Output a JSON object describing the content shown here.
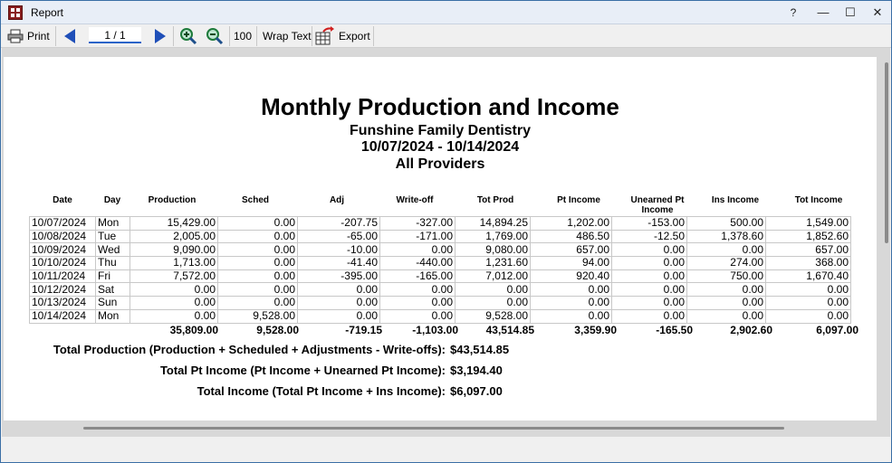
{
  "window": {
    "title": "Report",
    "help": "?",
    "minimize": "—",
    "maximize": "☐",
    "close": "✕"
  },
  "toolbar": {
    "print_label": "Print",
    "page_indicator": "1 / 1",
    "zoom_value": "100",
    "wrap_text_label": "Wrap Text",
    "export_label": "Export"
  },
  "report": {
    "title": "Monthly Production and Income",
    "practice": "Funshine Family Dentistry",
    "date_range": "10/07/2024 - 10/14/2024",
    "providers": "All Providers",
    "columns": [
      "Date",
      "Day",
      "Production",
      "Sched",
      "Adj",
      "Write-off",
      "Tot Prod",
      "Pt Income",
      "Unearned Pt Income",
      "Ins Income",
      "Tot Income"
    ],
    "rows": [
      [
        "10/07/2024",
        "Mon",
        "15,429.00",
        "0.00",
        "-207.75",
        "-327.00",
        "14,894.25",
        "1,202.00",
        "-153.00",
        "500.00",
        "1,549.00"
      ],
      [
        "10/08/2024",
        "Tue",
        "2,005.00",
        "0.00",
        "-65.00",
        "-171.00",
        "1,769.00",
        "486.50",
        "-12.50",
        "1,378.60",
        "1,852.60"
      ],
      [
        "10/09/2024",
        "Wed",
        "9,090.00",
        "0.00",
        "-10.00",
        "0.00",
        "9,080.00",
        "657.00",
        "0.00",
        "0.00",
        "657.00"
      ],
      [
        "10/10/2024",
        "Thu",
        "1,713.00",
        "0.00",
        "-41.40",
        "-440.00",
        "1,231.60",
        "94.00",
        "0.00",
        "274.00",
        "368.00"
      ],
      [
        "10/11/2024",
        "Fri",
        "7,572.00",
        "0.00",
        "-395.00",
        "-165.00",
        "7,012.00",
        "920.40",
        "0.00",
        "750.00",
        "1,670.40"
      ],
      [
        "10/12/2024",
        "Sat",
        "0.00",
        "0.00",
        "0.00",
        "0.00",
        "0.00",
        "0.00",
        "0.00",
        "0.00",
        "0.00"
      ],
      [
        "10/13/2024",
        "Sun",
        "0.00",
        "0.00",
        "0.00",
        "0.00",
        "0.00",
        "0.00",
        "0.00",
        "0.00",
        "0.00"
      ],
      [
        "10/14/2024",
        "Mon",
        "0.00",
        "9,528.00",
        "0.00",
        "0.00",
        "9,528.00",
        "0.00",
        "0.00",
        "0.00",
        "0.00"
      ]
    ],
    "totals": [
      "",
      "",
      "35,809.00",
      "9,528.00",
      "-719.15",
      "-1,103.00",
      "43,514.85",
      "3,359.90",
      "-165.50",
      "2,902.60",
      "6,097.00"
    ],
    "summary": [
      {
        "label": "Total Production (Production + Scheduled + Adjustments - Write-offs):",
        "value": "$43,514.85"
      },
      {
        "label": "Total Pt Income (Pt Income + Unearned Pt Income):",
        "value": "$3,194.40"
      },
      {
        "label": "Total Income (Total Pt Income + Ins Income):",
        "value": "$6,097.00"
      }
    ]
  }
}
